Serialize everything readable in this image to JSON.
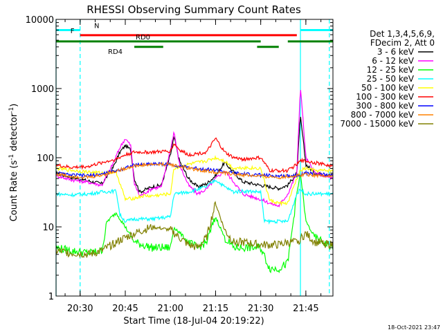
{
  "chart_data": {
    "type": "line",
    "title": "RHESSI Observing Summary Count Rates",
    "xlabel": "Start Time (18-Jul-04 20:19:22)",
    "ylabel": "Count Rate (s⁻¹ detector⁻¹)",
    "ylabel_main": "Count Rate (s",
    "ylabel_sup1": "-1",
    "ylabel_mid": " detector",
    "ylabel_sup2": "-1",
    "ylabel_end": ")",
    "yscale": "log",
    "ylim": [
      1,
      10000
    ],
    "xlim_minutes": [
      20.3667,
      21.9
    ],
    "x_ticks": [
      {
        "t": 20.5,
        "label": "20:30"
      },
      {
        "t": 20.75,
        "label": "20:45"
      },
      {
        "t": 21.0,
        "label": "21:00"
      },
      {
        "t": 21.25,
        "label": "21:15"
      },
      {
        "t": 21.5,
        "label": "21:30"
      },
      {
        "t": 21.75,
        "label": "21:45"
      }
    ],
    "y_ticks": [
      {
        "v": 1,
        "label": "1"
      },
      {
        "v": 10,
        "label": "10"
      },
      {
        "v": 100,
        "label": "100"
      },
      {
        "v": 1000,
        "label": "1000"
      },
      {
        "v": 10000,
        "label": "10000"
      }
    ],
    "legend": {
      "header1": "Det 1,3,4,5,6,9,",
      "header2": "FDecim 2, Att 0",
      "position": "top-right"
    },
    "series": [
      {
        "name": "3 - 6 keV",
        "color": "#000000",
        "x": [
          20.3667,
          20.45,
          20.55,
          20.62,
          20.68,
          20.72,
          20.75,
          20.78,
          20.8,
          20.83,
          20.9,
          20.95,
          21.0,
          21.02,
          21.05,
          21.1,
          21.15,
          21.2,
          21.25,
          21.3,
          21.35,
          21.4,
          21.5,
          21.55,
          21.6,
          21.65,
          21.7,
          21.72,
          21.75,
          21.8,
          21.9
        ],
        "y": [
          60,
          52,
          46,
          42,
          70,
          120,
          150,
          130,
          50,
          32,
          38,
          40,
          110,
          200,
          90,
          50,
          38,
          42,
          55,
          85,
          62,
          45,
          40,
          38,
          36,
          40,
          60,
          400,
          80,
          60,
          55
        ]
      },
      {
        "name": "6 - 12 keV",
        "color": "#ff00ff",
        "x": [
          20.3667,
          20.45,
          20.55,
          20.62,
          20.68,
          20.72,
          20.75,
          20.78,
          20.8,
          20.83,
          20.9,
          20.95,
          21.0,
          21.02,
          21.05,
          21.1,
          21.15,
          21.2,
          21.25,
          21.3,
          21.35,
          21.4,
          21.5,
          21.55,
          21.6,
          21.65,
          21.7,
          21.72,
          21.75,
          21.8,
          21.9
        ],
        "y": [
          55,
          48,
          44,
          40,
          80,
          140,
          190,
          150,
          42,
          28,
          36,
          38,
          130,
          240,
          80,
          40,
          30,
          35,
          50,
          65,
          45,
          30,
          25,
          22,
          20,
          30,
          60,
          1100,
          100,
          60,
          50
        ]
      },
      {
        "name": "12 - 25 keV",
        "color": "#00ff00",
        "x": [
          20.3667,
          20.45,
          20.55,
          20.62,
          20.65,
          20.7,
          20.75,
          20.8,
          20.9,
          21.0,
          21.02,
          21.1,
          21.15,
          21.2,
          21.25,
          21.3,
          21.35,
          21.4,
          21.5,
          21.55,
          21.6,
          21.65,
          21.7,
          21.72,
          21.75,
          21.8,
          21.9
        ],
        "y": [
          5,
          4.5,
          4.2,
          4.5,
          12,
          16,
          10,
          6,
          5,
          5,
          10,
          6,
          5,
          6,
          14,
          7,
          5,
          5,
          5,
          2.5,
          2.5,
          3,
          30,
          60,
          12,
          7,
          5
        ]
      },
      {
        "name": "25 - 50 keV",
        "color": "#00ffff",
        "x": [
          20.3667,
          20.45,
          20.55,
          20.62,
          20.7,
          20.72,
          20.75,
          20.8,
          20.9,
          21.0,
          21.02,
          21.1,
          21.2,
          21.25,
          21.3,
          21.35,
          21.4,
          21.5,
          21.52,
          21.6,
          21.65,
          21.7,
          21.72,
          21.75,
          21.8,
          21.9
        ],
        "y": [
          30,
          29,
          30,
          32,
          33,
          15,
          12,
          13,
          13,
          14,
          30,
          32,
          38,
          48,
          38,
          32,
          33,
          32,
          12,
          12,
          12,
          30,
          35,
          30,
          30,
          30
        ]
      },
      {
        "name": "50 - 100 keV",
        "color": "#ffff00",
        "x": [
          20.3667,
          20.45,
          20.55,
          20.62,
          20.7,
          20.75,
          20.8,
          20.85,
          20.9,
          21.0,
          21.02,
          21.1,
          21.2,
          21.25,
          21.3,
          21.35,
          21.4,
          21.5,
          21.55,
          21.6,
          21.65,
          21.7,
          21.72,
          21.75,
          21.8,
          21.9
        ],
        "y": [
          70,
          66,
          62,
          60,
          62,
          25,
          26,
          28,
          28,
          30,
          70,
          80,
          90,
          100,
          90,
          70,
          72,
          70,
          24,
          22,
          22,
          50,
          65,
          70,
          65,
          65
        ]
      },
      {
        "name": "100 - 300 keV",
        "color": "#ff0000",
        "x": [
          20.3667,
          20.45,
          20.55,
          20.62,
          20.7,
          20.75,
          20.8,
          20.9,
          21.0,
          21.02,
          21.05,
          21.1,
          21.2,
          21.25,
          21.3,
          21.35,
          21.4,
          21.5,
          21.55,
          21.6,
          21.65,
          21.7,
          21.72,
          21.75,
          21.8,
          21.9
        ],
        "y": [
          78,
          72,
          75,
          85,
          95,
          110,
          120,
          120,
          125,
          160,
          130,
          110,
          120,
          190,
          120,
          100,
          95,
          100,
          65,
          65,
          65,
          80,
          90,
          90,
          85,
          75
        ]
      },
      {
        "name": "300 - 800 keV",
        "color": "#0000ff",
        "x": [
          20.3667,
          20.45,
          20.55,
          20.62,
          20.7,
          20.75,
          20.8,
          20.9,
          21.0,
          21.1,
          21.2,
          21.25,
          21.3,
          21.35,
          21.4,
          21.5,
          21.6,
          21.7,
          21.75,
          21.8,
          21.9
        ],
        "y": [
          60,
          56,
          55,
          58,
          65,
          72,
          78,
          82,
          80,
          72,
          68,
          66,
          62,
          60,
          58,
          56,
          54,
          56,
          60,
          58,
          56
        ]
      },
      {
        "name": "800 - 7000 keV",
        "color": "#ff8000",
        "x": [
          20.3667,
          20.45,
          20.55,
          20.62,
          20.7,
          20.75,
          20.8,
          20.9,
          21.0,
          21.1,
          21.2,
          21.25,
          21.3,
          21.35,
          21.4,
          21.5,
          21.6,
          21.7,
          21.75,
          21.8,
          21.9
        ],
        "y": [
          58,
          54,
          52,
          56,
          64,
          70,
          76,
          80,
          80,
          70,
          64,
          62,
          60,
          58,
          56,
          54,
          52,
          55,
          58,
          56,
          54
        ]
      },
      {
        "name": "7000 - 15000 keV",
        "color": "#808000",
        "x": [
          20.3667,
          20.45,
          20.55,
          20.62,
          20.7,
          20.75,
          20.8,
          20.85,
          20.9,
          21.0,
          21.05,
          21.1,
          21.15,
          21.2,
          21.25,
          21.3,
          21.35,
          21.4,
          21.5,
          21.6,
          21.65,
          21.7,
          21.75,
          21.8,
          21.9
        ],
        "y": [
          4.5,
          4.2,
          4,
          4.5,
          6,
          7,
          8,
          9,
          10,
          9,
          7,
          5.5,
          5,
          7,
          22,
          9,
          6,
          6,
          5.5,
          5.5,
          6,
          6,
          8,
          6,
          5.5
        ]
      }
    ],
    "flags": [
      {
        "label": "N",
        "color": "#00ffff",
        "y": 7000,
        "segments": [
          [
            20.3667,
            20.5
          ],
          [
            21.72,
            21.9
          ]
        ]
      },
      {
        "label": "F",
        "color": "#ff0000",
        "y": 5900,
        "segments": [
          [
            20.5,
            21.7
          ]
        ]
      },
      {
        "label": "RD0",
        "color": "#008000",
        "y": 4800,
        "segments": [
          [
            20.3667,
            21.5
          ],
          [
            21.65,
            21.9
          ]
        ]
      },
      {
        "label": "RD4",
        "color": "#008000",
        "y": 4000,
        "segments": [
          [
            20.8,
            20.96
          ],
          [
            21.48,
            21.6
          ]
        ]
      }
    ],
    "vlines": [
      {
        "t": 20.3667,
        "color": "#00ffff",
        "style": "solid"
      },
      {
        "t": 20.5,
        "color": "#00ffff",
        "style": "dashed"
      },
      {
        "t": 21.72,
        "color": "#00ffff",
        "style": "solid"
      },
      {
        "t": 21.88,
        "color": "#00ffff",
        "style": "dashed"
      }
    ],
    "grid": false
  },
  "footer_timestamp": "18-Oct-2021 23:47"
}
